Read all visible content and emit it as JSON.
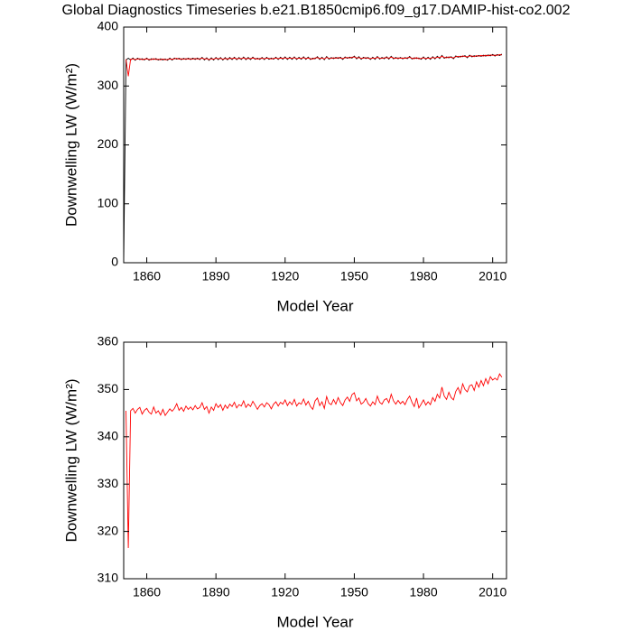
{
  "chart_data": [
    {
      "type": "line",
      "title": "Global Diagnostics Timeseries b.e21.B1850cmip6.f09_g17.DAMIP-hist-co2.002",
      "xlabel": "Model Year",
      "ylabel": "Downwelling LW (W/m²)",
      "xlim": [
        1850,
        2016
      ],
      "xticks": [
        1860,
        1890,
        1920,
        1950,
        1980,
        2010
      ],
      "ylim": [
        0,
        400
      ],
      "yticks": [
        0,
        100,
        200,
        300,
        400
      ],
      "series": [
        {
          "color": "#000000",
          "x": [
            1850,
            1851,
            1852,
            1853,
            1854,
            1855,
            1856,
            1857,
            1858,
            1859,
            1860,
            1861,
            1862,
            1863,
            1864,
            1865,
            1866,
            1867,
            1868,
            1869,
            1870,
            1871,
            1872,
            1873,
            1874,
            1875,
            1876,
            1877,
            1878,
            1879,
            1880,
            1881,
            1882,
            1883,
            1884,
            1885,
            1886,
            1887,
            1888,
            1889,
            1890,
            1891,
            1892,
            1893,
            1894,
            1895,
            1896,
            1897,
            1898,
            1899,
            1900,
            1901,
            1902,
            1903,
            1904,
            1905,
            1906,
            1907,
            1908,
            1909,
            1910,
            1911,
            1912,
            1913,
            1914,
            1915,
            1916,
            1917,
            1918,
            1919,
            1920,
            1921,
            1922,
            1923,
            1924,
            1925,
            1926,
            1927,
            1928,
            1929,
            1930,
            1931,
            1932,
            1933,
            1934,
            1935,
            1936,
            1937,
            1938,
            1939,
            1940,
            1941,
            1942,
            1943,
            1944,
            1945,
            1946,
            1947,
            1948,
            1949,
            1950,
            1951,
            1952,
            1953,
            1954,
            1955,
            1956,
            1957,
            1958,
            1959,
            1960,
            1961,
            1962,
            1963,
            1964,
            1965,
            1966,
            1967,
            1968,
            1969,
            1970,
            1971,
            1972,
            1973,
            1974,
            1975,
            1976,
            1977,
            1978,
            1979,
            1980,
            1981,
            1982,
            1983,
            1984,
            1985,
            1986,
            1987,
            1988,
            1989,
            1990,
            1991,
            1992,
            1993,
            1994,
            1995,
            1996,
            1997,
            1998,
            1999,
            2000,
            2001,
            2002,
            2003,
            2004,
            2005,
            2006,
            2007,
            2008,
            2009,
            2010,
            2011,
            2012,
            2013,
            2014
          ],
          "values": [
            0,
            344.0,
            347.2,
            344.1,
            347.5,
            343.6,
            347.2,
            344.8,
            346.4,
            344.3,
            347.4,
            343.8,
            346.3,
            344.9,
            346.5,
            344.0,
            346.1,
            344.3,
            346.0,
            343.7,
            347.3,
            344.0,
            347.5,
            345.6,
            347.1,
            344.7,
            346.9,
            345.0,
            347.3,
            344.9,
            347.2,
            345.1,
            347.4,
            344.7,
            348.6,
            344.3,
            347.9,
            343.6,
            347.8,
            344.1,
            348.5,
            344.7,
            348.3,
            344.1,
            348.2,
            344.5,
            348.4,
            344.9,
            348.8,
            344.6,
            348.3,
            345.0,
            349.1,
            344.7,
            348.4,
            344.9,
            349.0,
            345.2,
            347.3,
            345.1,
            348.5,
            344.8,
            348.7,
            345.3,
            347.4,
            345.4,
            348.9,
            345.0,
            348.8,
            345.4,
            349.3,
            345.1,
            348.9,
            345.3,
            349.4,
            345.0,
            348.7,
            345.4,
            349.5,
            345.2,
            349.0,
            344.9,
            347.3,
            346.1,
            349.7,
            345.1,
            348.9,
            344.5,
            350.0,
            345.6,
            348.3,
            346.4,
            348.4,
            346.8,
            348.7,
            345.1,
            349.3,
            346.9,
            349.0,
            347.4,
            350.8,
            346.1,
            349.7,
            345.4,
            348.8,
            346.6,
            348.5,
            345.0,
            348.9,
            345.3,
            350.1,
            345.8,
            348.4,
            346.3,
            349.6,
            345.7,
            350.5,
            346.1,
            348.4,
            346.2,
            348.5,
            346.0,
            348.3,
            346.4,
            350.1,
            345.8,
            347.9,
            346.7,
            347.6,
            345.4,
            349.3,
            345.2,
            348.9,
            345.3,
            349.8,
            346.0,
            350.5,
            346.7,
            352.0,
            347.1,
            349.4,
            347.9,
            349.8,
            346.3,
            351.1,
            348.9,
            350.6,
            349.7,
            351.5,
            348.0,
            352.3,
            349.5,
            351.3,
            350.1,
            352.0,
            350.4,
            352.3,
            350.8,
            352.7,
            351.2,
            353.5,
            350.9,
            353.5,
            351.8,
            354.1
          ]
        },
        {
          "color": "#ff0000",
          "x": [
            1851,
            1852,
            1853,
            1854,
            1855,
            1856,
            1857,
            1858,
            1859,
            1860,
            1861,
            1862,
            1863,
            1864,
            1865,
            1866,
            1867,
            1868,
            1869,
            1870,
            1871,
            1872,
            1873,
            1874,
            1875,
            1876,
            1877,
            1878,
            1879,
            1880,
            1881,
            1882,
            1883,
            1884,
            1885,
            1886,
            1887,
            1888,
            1889,
            1890,
            1891,
            1892,
            1893,
            1894,
            1895,
            1896,
            1897,
            1898,
            1899,
            1900,
            1901,
            1902,
            1903,
            1904,
            1905,
            1906,
            1907,
            1908,
            1909,
            1910,
            1911,
            1912,
            1913,
            1914,
            1915,
            1916,
            1917,
            1918,
            1919,
            1920,
            1921,
            1922,
            1923,
            1924,
            1925,
            1926,
            1927,
            1928,
            1929,
            1930,
            1931,
            1932,
            1933,
            1934,
            1935,
            1936,
            1937,
            1938,
            1939,
            1940,
            1941,
            1942,
            1943,
            1944,
            1945,
            1946,
            1947,
            1948,
            1949,
            1950,
            1951,
            1952,
            1953,
            1954,
            1955,
            1956,
            1957,
            1958,
            1959,
            1960,
            1961,
            1962,
            1963,
            1964,
            1965,
            1966,
            1967,
            1968,
            1969,
            1970,
            1971,
            1972,
            1973,
            1974,
            1975,
            1976,
            1977,
            1978,
            1979,
            1980,
            1981,
            1982,
            1983,
            1984,
            1985,
            1986,
            1987,
            1988,
            1989,
            1990,
            1991,
            1992,
            1993,
            1994,
            1995,
            1996,
            1997,
            1998,
            1999,
            2000,
            2001,
            2002,
            2003,
            2004,
            2005,
            2006,
            2007,
            2008,
            2009,
            2010,
            2011,
            2012,
            2013,
            2014
          ],
          "values": [
            345.5,
            316.5,
            345.5,
            346.0,
            345.0,
            345.8,
            346.2,
            344.8,
            345.6,
            346.0,
            345.2,
            344.8,
            346.3,
            345.0,
            345.5,
            344.6,
            345.8,
            344.5,
            345.2,
            345.9,
            345.4,
            346.0,
            347.0,
            345.6,
            346.2,
            345.4,
            346.5,
            345.8,
            346.3,
            345.7,
            346.6,
            345.9,
            346.2,
            347.2,
            345.8,
            346.4,
            345.0,
            346.3,
            345.6,
            347.0,
            346.2,
            346.8,
            345.6,
            346.7,
            346.0,
            346.9,
            346.4,
            347.3,
            346.1,
            346.8,
            346.5,
            347.6,
            346.2,
            346.9,
            346.4,
            347.5,
            346.7,
            345.8,
            346.6,
            347.0,
            346.3,
            347.2,
            346.8,
            345.9,
            346.9,
            347.4,
            346.5,
            347.3,
            346.9,
            347.8,
            346.6,
            347.4,
            346.8,
            347.9,
            346.5,
            347.2,
            346.9,
            348.0,
            346.7,
            347.5,
            346.4,
            345.8,
            347.6,
            348.2,
            346.6,
            347.4,
            346.0,
            348.5,
            347.1,
            346.8,
            347.9,
            346.9,
            348.3,
            347.2,
            346.6,
            347.8,
            348.4,
            347.5,
            348.9,
            349.3,
            347.6,
            348.2,
            346.9,
            347.3,
            348.1,
            347.0,
            346.5,
            347.4,
            346.8,
            348.6,
            347.3,
            346.9,
            347.8,
            348.1,
            347.2,
            349.0,
            347.6,
            346.9,
            347.7,
            347.0,
            347.5,
            346.8,
            347.9,
            348.6,
            347.3,
            346.4,
            348.2,
            346.1,
            346.9,
            347.8,
            346.7,
            347.4,
            346.8,
            348.3,
            347.5,
            349.0,
            348.2,
            350.5,
            348.6,
            347.9,
            349.4,
            348.3,
            347.8,
            349.6,
            350.4,
            349.1,
            351.2,
            350.0,
            349.5,
            350.8,
            351.0,
            349.8,
            351.6,
            350.5,
            351.9,
            350.8,
            352.3,
            351.2,
            352.7,
            352.0,
            352.4,
            352.0,
            353.3,
            352.6
          ]
        }
      ]
    },
    {
      "type": "line",
      "xlabel": "Model Year",
      "ylabel": "Downwelling LW (W/m²)",
      "xlim": [
        1850,
        2016
      ],
      "xticks": [
        1860,
        1890,
        1920,
        1950,
        1980,
        2010
      ],
      "ylim": [
        310,
        360
      ],
      "yticks": [
        310,
        320,
        330,
        340,
        350,
        360
      ],
      "series": [
        {
          "color": "#ff0000",
          "x": [
            1851,
            1852,
            1853,
            1854,
            1855,
            1856,
            1857,
            1858,
            1859,
            1860,
            1861,
            1862,
            1863,
            1864,
            1865,
            1866,
            1867,
            1868,
            1869,
            1870,
            1871,
            1872,
            1873,
            1874,
            1875,
            1876,
            1877,
            1878,
            1879,
            1880,
            1881,
            1882,
            1883,
            1884,
            1885,
            1886,
            1887,
            1888,
            1889,
            1890,
            1891,
            1892,
            1893,
            1894,
            1895,
            1896,
            1897,
            1898,
            1899,
            1900,
            1901,
            1902,
            1903,
            1904,
            1905,
            1906,
            1907,
            1908,
            1909,
            1910,
            1911,
            1912,
            1913,
            1914,
            1915,
            1916,
            1917,
            1918,
            1919,
            1920,
            1921,
            1922,
            1923,
            1924,
            1925,
            1926,
            1927,
            1928,
            1929,
            1930,
            1931,
            1932,
            1933,
            1934,
            1935,
            1936,
            1937,
            1938,
            1939,
            1940,
            1941,
            1942,
            1943,
            1944,
            1945,
            1946,
            1947,
            1948,
            1949,
            1950,
            1951,
            1952,
            1953,
            1954,
            1955,
            1956,
            1957,
            1958,
            1959,
            1960,
            1961,
            1962,
            1963,
            1964,
            1965,
            1966,
            1967,
            1968,
            1969,
            1970,
            1971,
            1972,
            1973,
            1974,
            1975,
            1976,
            1977,
            1978,
            1979,
            1980,
            1981,
            1982,
            1983,
            1984,
            1985,
            1986,
            1987,
            1988,
            1989,
            1990,
            1991,
            1992,
            1993,
            1994,
            1995,
            1996,
            1997,
            1998,
            1999,
            2000,
            2001,
            2002,
            2003,
            2004,
            2005,
            2006,
            2007,
            2008,
            2009,
            2010,
            2011,
            2012,
            2013,
            2014
          ],
          "values": [
            345.5,
            316.5,
            345.5,
            346.0,
            345.0,
            345.8,
            346.2,
            344.8,
            345.6,
            346.0,
            345.2,
            344.8,
            346.3,
            345.0,
            345.5,
            344.6,
            345.8,
            344.5,
            345.2,
            345.9,
            345.4,
            346.0,
            347.0,
            345.6,
            346.2,
            345.4,
            346.5,
            345.8,
            346.3,
            345.7,
            346.6,
            345.9,
            346.2,
            347.2,
            345.8,
            346.4,
            345.0,
            346.3,
            345.6,
            347.0,
            346.2,
            346.8,
            345.6,
            346.7,
            346.0,
            346.9,
            346.4,
            347.3,
            346.1,
            346.8,
            346.5,
            347.6,
            346.2,
            346.9,
            346.4,
            347.5,
            346.7,
            345.8,
            346.6,
            347.0,
            346.3,
            347.2,
            346.8,
            345.9,
            346.9,
            347.4,
            346.5,
            347.3,
            346.9,
            347.8,
            346.6,
            347.4,
            346.8,
            347.9,
            346.5,
            347.2,
            346.9,
            348.0,
            346.7,
            347.5,
            346.4,
            345.8,
            347.6,
            348.2,
            346.6,
            347.4,
            346.0,
            348.5,
            347.1,
            346.8,
            347.9,
            346.9,
            348.3,
            347.2,
            346.6,
            347.8,
            348.4,
            347.5,
            348.9,
            349.3,
            347.6,
            348.2,
            346.9,
            347.3,
            348.1,
            347.0,
            346.5,
            347.4,
            346.8,
            348.6,
            347.3,
            346.9,
            347.8,
            348.1,
            347.2,
            349.0,
            347.6,
            346.9,
            347.7,
            347.0,
            347.5,
            346.8,
            347.9,
            348.6,
            347.3,
            346.4,
            348.2,
            346.1,
            346.9,
            347.8,
            346.7,
            347.4,
            346.8,
            348.3,
            347.5,
            349.0,
            348.2,
            350.5,
            348.6,
            347.9,
            349.4,
            348.3,
            347.8,
            349.6,
            350.4,
            349.1,
            351.2,
            350.0,
            349.5,
            350.8,
            351.0,
            349.8,
            351.6,
            350.5,
            351.9,
            350.8,
            352.3,
            351.2,
            352.7,
            352.0,
            352.4,
            352.0,
            353.3,
            352.6
          ]
        }
      ]
    }
  ]
}
